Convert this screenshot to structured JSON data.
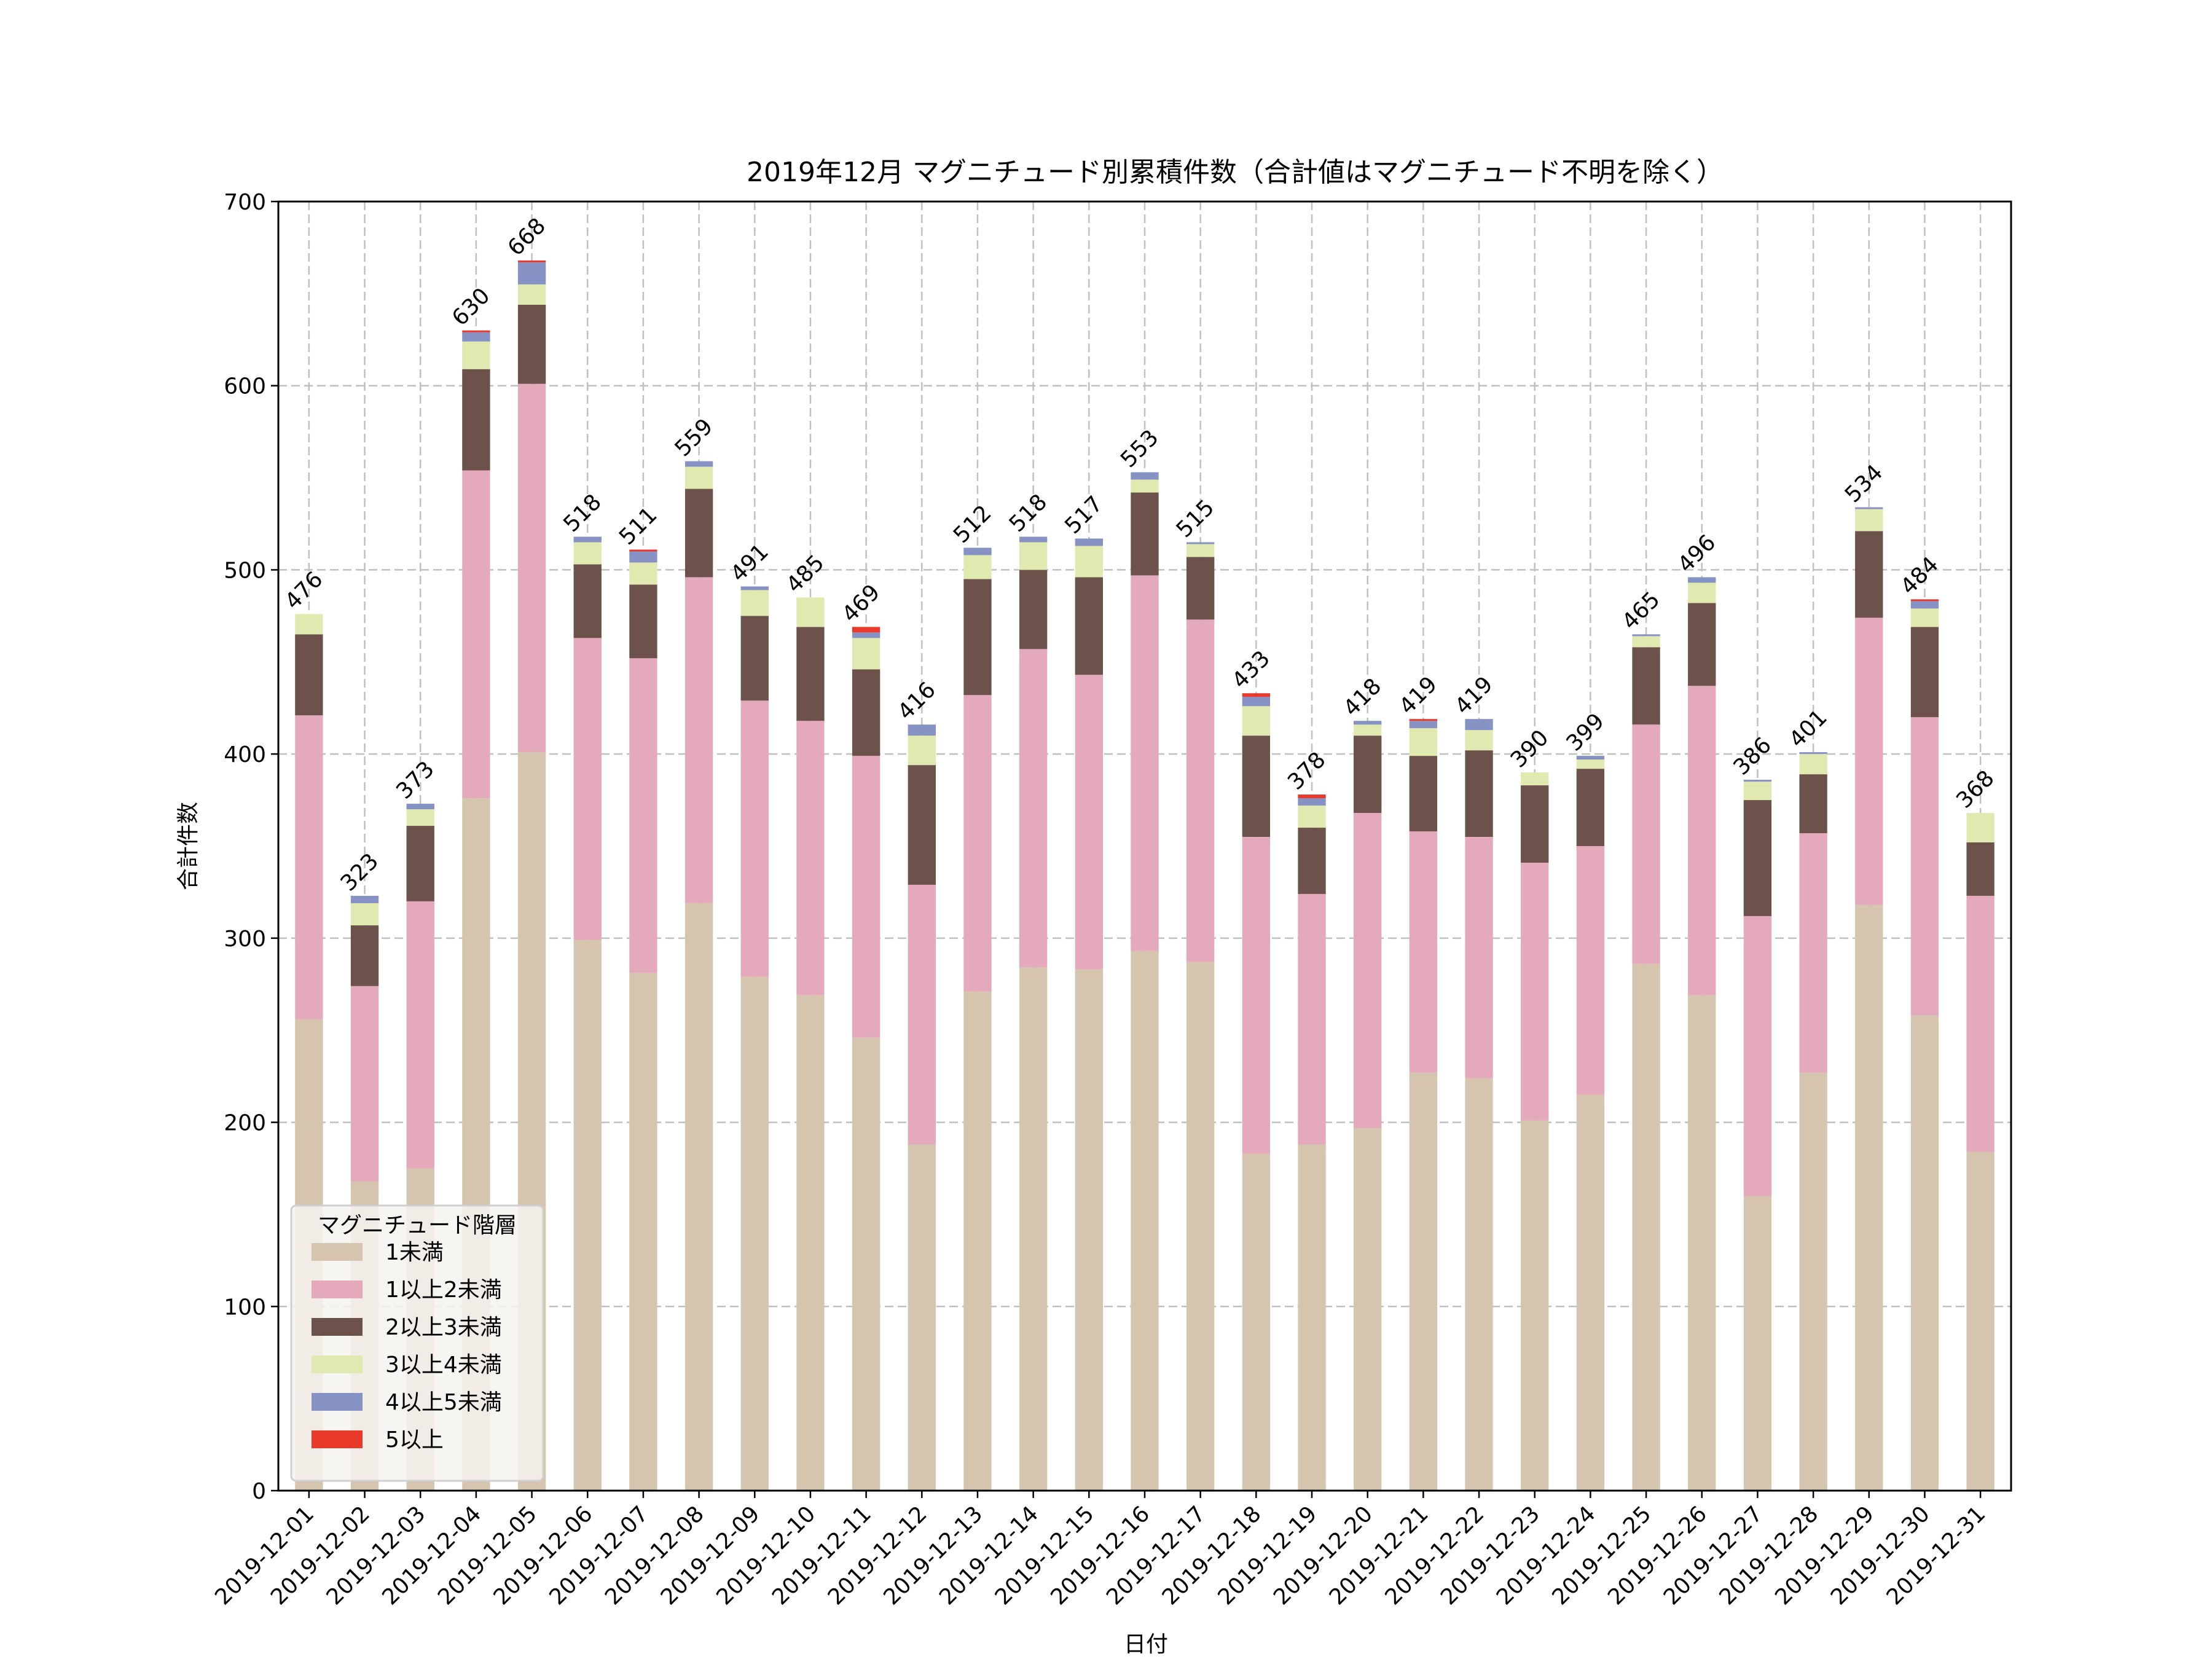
{
  "chart_data": {
    "type": "bar",
    "stacked": true,
    "title": "2019年12月 マグニチュード別累積件数（合計値はマグニチュード不明を除く）",
    "xlabel": "日付",
    "ylabel": "合計件数",
    "ylim": [
      0,
      700
    ],
    "yticks": [
      "0",
      "100",
      "200",
      "300",
      "400",
      "500",
      "600",
      "700"
    ],
    "grid": true,
    "legend": {
      "title": "マグニチュード階層",
      "position": "lower-left"
    },
    "categories": [
      "2019-12-01",
      "2019-12-02",
      "2019-12-03",
      "2019-12-04",
      "2019-12-05",
      "2019-12-06",
      "2019-12-07",
      "2019-12-08",
      "2019-12-09",
      "2019-12-10",
      "2019-12-11",
      "2019-12-12",
      "2019-12-13",
      "2019-12-14",
      "2019-12-15",
      "2019-12-16",
      "2019-12-17",
      "2019-12-18",
      "2019-12-19",
      "2019-12-20",
      "2019-12-21",
      "2019-12-22",
      "2019-12-23",
      "2019-12-24",
      "2019-12-25",
      "2019-12-26",
      "2019-12-27",
      "2019-12-28",
      "2019-12-29",
      "2019-12-30",
      "2019-12-31"
    ],
    "series": [
      {
        "name": "1未満",
        "color": "#d5c4ae",
        "values": [
          256,
          168,
          175,
          376,
          401,
          299,
          281,
          319,
          279,
          269,
          246,
          188,
          271,
          284,
          283,
          293,
          287,
          183,
          188,
          197,
          227,
          224,
          201,
          215,
          286,
          269,
          160,
          227,
          318,
          258,
          184
        ]
      },
      {
        "name": "1以上2未満",
        "color": "#e4aabb",
        "values": [
          165,
          106,
          145,
          178,
          200,
          164,
          171,
          177,
          150,
          149,
          153,
          141,
          161,
          173,
          160,
          204,
          186,
          172,
          136,
          171,
          131,
          131,
          140,
          135,
          130,
          168,
          152,
          130,
          156,
          162,
          139
        ]
      },
      {
        "name": "2以上3未満",
        "color": "#6d514b",
        "values": [
          44,
          33,
          41,
          55,
          43,
          40,
          40,
          48,
          46,
          51,
          47,
          65,
          63,
          43,
          53,
          45,
          34,
          55,
          36,
          42,
          41,
          47,
          42,
          42,
          42,
          45,
          63,
          32,
          47,
          49,
          29
        ]
      },
      {
        "name": "3以上4未満",
        "color": "#e0eab0",
        "values": [
          11,
          12,
          9,
          15,
          11,
          12,
          12,
          12,
          14,
          16,
          17,
          16,
          13,
          15,
          17,
          7,
          7,
          16,
          12,
          6,
          15,
          11,
          7,
          5,
          6,
          11,
          10,
          11,
          12,
          10,
          16
        ]
      },
      {
        "name": "4以上5未満",
        "color": "#8592c3",
        "values": [
          0,
          4,
          3,
          5,
          12,
          3,
          6,
          3,
          2,
          0,
          3,
          6,
          4,
          3,
          4,
          4,
          1,
          5,
          4,
          2,
          4,
          6,
          0,
          2,
          1,
          3,
          1,
          1,
          1,
          4,
          0
        ]
      },
      {
        "name": "5以上",
        "color": "#e8392a",
        "values": [
          0,
          0,
          0,
          1,
          1,
          0,
          1,
          0,
          0,
          0,
          3,
          0,
          0,
          0,
          0,
          0,
          0,
          2,
          2,
          0,
          1,
          0,
          0,
          0,
          0,
          0,
          0,
          0,
          0,
          1,
          0
        ]
      }
    ],
    "totals": [
      476,
      323,
      373,
      630,
      668,
      518,
      511,
      559,
      491,
      485,
      469,
      416,
      512,
      518,
      517,
      553,
      515,
      433,
      378,
      418,
      419,
      419,
      390,
      399,
      465,
      496,
      386,
      401,
      534,
      484,
      368
    ]
  }
}
